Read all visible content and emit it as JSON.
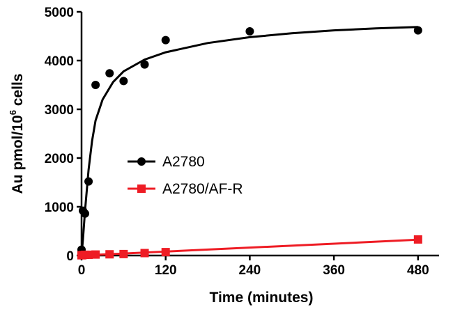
{
  "chart_data": {
    "type": "scatter",
    "xlabel": "Time (minutes)",
    "ylabel": {
      "base": "Au pmol/10",
      "sup": "6",
      "tail": " cells"
    },
    "xlim": [
      0,
      510
    ],
    "ylim": [
      0,
      5000
    ],
    "xticks": [
      0,
      120,
      240,
      360,
      480
    ],
    "yticks": [
      0,
      1000,
      2000,
      3000,
      4000,
      5000
    ],
    "grid": false,
    "legend_position": "center",
    "series": [
      {
        "name": "A2780",
        "color": "#000000",
        "marker": "circle",
        "points": [
          {
            "x": 0,
            "y": 120
          },
          {
            "x": 2,
            "y": 920
          },
          {
            "x": 5,
            "y": 860
          },
          {
            "x": 10,
            "y": 1520
          },
          {
            "x": 20,
            "y": 3500
          },
          {
            "x": 40,
            "y": 3740
          },
          {
            "x": 60,
            "y": 3580
          },
          {
            "x": 90,
            "y": 3920
          },
          {
            "x": 120,
            "y": 4420
          },
          {
            "x": 240,
            "y": 4600
          },
          {
            "x": 480,
            "y": 4620
          }
        ],
        "fit_curve": [
          {
            "x": 0,
            "y": 0
          },
          {
            "x": 2,
            "y": 330
          },
          {
            "x": 5,
            "y": 920
          },
          {
            "x": 10,
            "y": 1760
          },
          {
            "x": 15,
            "y": 2350
          },
          {
            "x": 20,
            "y": 2770
          },
          {
            "x": 30,
            "y": 3200
          },
          {
            "x": 45,
            "y": 3560
          },
          {
            "x": 60,
            "y": 3780
          },
          {
            "x": 90,
            "y": 4020
          },
          {
            "x": 120,
            "y": 4170
          },
          {
            "x": 180,
            "y": 4360
          },
          {
            "x": 240,
            "y": 4480
          },
          {
            "x": 300,
            "y": 4560
          },
          {
            "x": 360,
            "y": 4620
          },
          {
            "x": 420,
            "y": 4660
          },
          {
            "x": 480,
            "y": 4690
          }
        ]
      },
      {
        "name": "A2780/AF-R",
        "color": "#ee1c24",
        "marker": "square",
        "points": [
          {
            "x": 0,
            "y": 5
          },
          {
            "x": 2,
            "y": 10
          },
          {
            "x": 5,
            "y": 15
          },
          {
            "x": 10,
            "y": 15
          },
          {
            "x": 20,
            "y": 20
          },
          {
            "x": 40,
            "y": 25
          },
          {
            "x": 60,
            "y": 30
          },
          {
            "x": 90,
            "y": 50
          },
          {
            "x": 120,
            "y": 70
          },
          {
            "x": 480,
            "y": 330
          }
        ],
        "fit_curve": [
          {
            "x": 0,
            "y": 0
          },
          {
            "x": 480,
            "y": 325
          }
        ]
      }
    ]
  }
}
